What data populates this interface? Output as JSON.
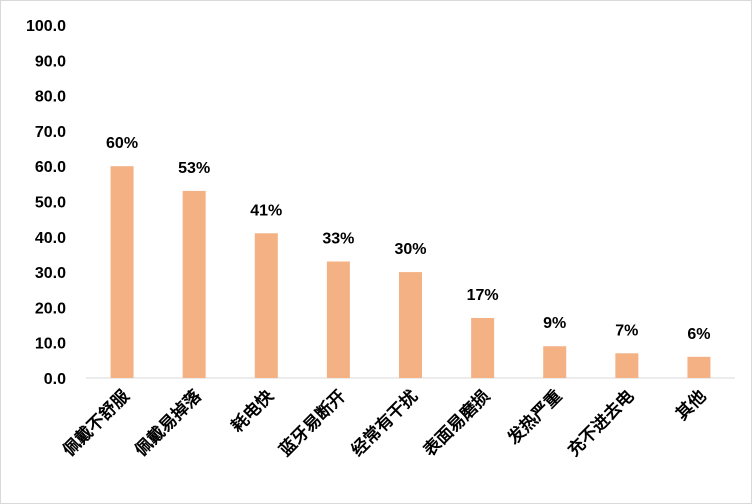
{
  "chart_data": {
    "type": "bar",
    "categories": [
      "佩戴不舒服",
      "佩戴易掉落",
      "耗电快",
      "蓝牙易断开",
      "经常有干扰",
      "表面易磨损",
      "发热严重",
      "充不进去电",
      "其他"
    ],
    "values": [
      60,
      53,
      41,
      33,
      30,
      17,
      9,
      7,
      6
    ],
    "data_labels": [
      "60%",
      "53%",
      "41%",
      "33%",
      "30%",
      "17%",
      "9%",
      "7%",
      "6%"
    ],
    "yticks": [
      "0.0",
      "10.0",
      "20.0",
      "30.0",
      "40.0",
      "50.0",
      "60.0",
      "70.0",
      "80.0",
      "90.0",
      "100.0"
    ],
    "ylim": [
      0,
      100
    ],
    "title": "",
    "xlabel": "",
    "ylabel": "",
    "grid": false,
    "bar_color": "#f4b183",
    "axis_color": "#d9d9d9"
  }
}
